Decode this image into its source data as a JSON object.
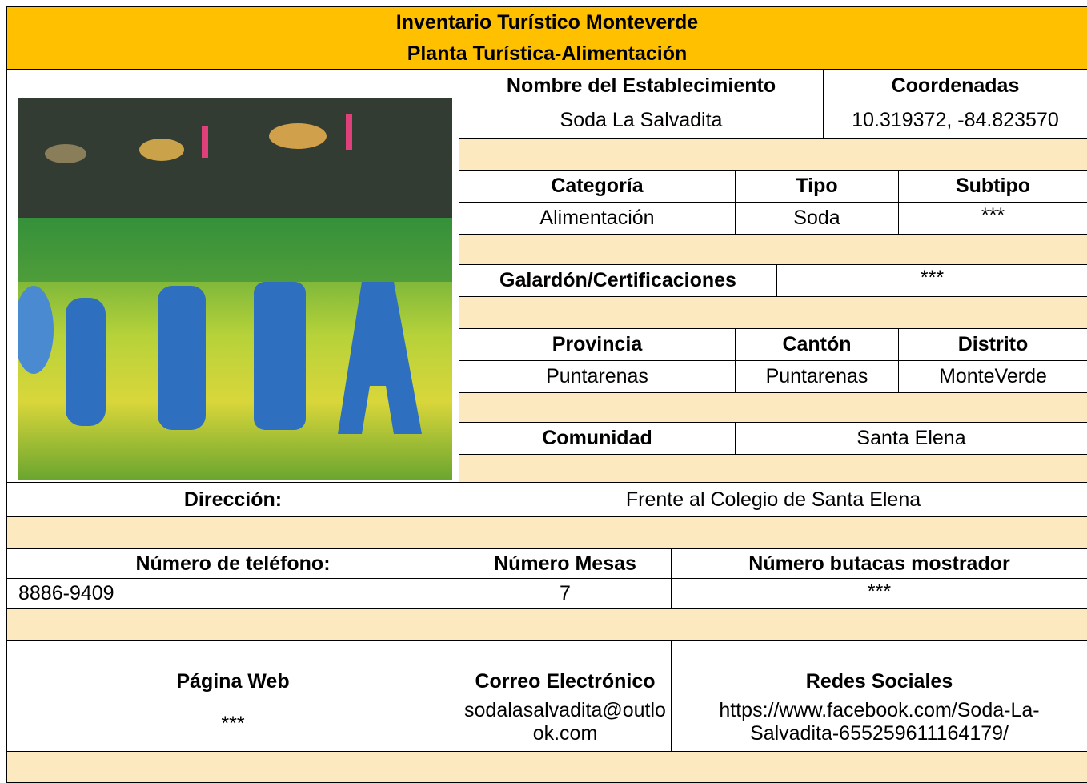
{
  "header": {
    "title": "Inventario Turístico Monteverde",
    "subtitle": "Planta Turística-Alimentación"
  },
  "establishment": {
    "name_label": "Nombre del Establecimiento",
    "name": "Soda La Salvadita",
    "coords_label": "Coordenadas",
    "coords": "10.319372, -84.823570"
  },
  "classification": {
    "labels": [
      "Categoría",
      "Tipo",
      "Subtipo"
    ],
    "values": [
      "Alimentación",
      "Soda",
      "***"
    ]
  },
  "awards": {
    "label": "Galardón/Certificaciones",
    "value": "***"
  },
  "location": {
    "labels": [
      "Provincia",
      "Cantón",
      "Distrito"
    ],
    "values": [
      "Puntarenas",
      "Puntarenas",
      "MonteVerde"
    ]
  },
  "community": {
    "label": "Comunidad",
    "value": "Santa Elena"
  },
  "address": {
    "label": "Dirección:",
    "value": "Frente al Colegio de Santa Elena"
  },
  "capacity": {
    "labels": [
      "Número de teléfono:",
      "Número Mesas",
      "Número butacas mostrador"
    ],
    "values": [
      "8886-9409",
      "7",
      "***"
    ]
  },
  "contact": {
    "labels": [
      "Página Web",
      "Correo Electrónico",
      "Redes Sociales"
    ],
    "values": [
      "***",
      "sodalasalvadita@outlook.com",
      "https://www.facebook.com/Soda-La-Salvadita-655259611164179/"
    ]
  }
}
